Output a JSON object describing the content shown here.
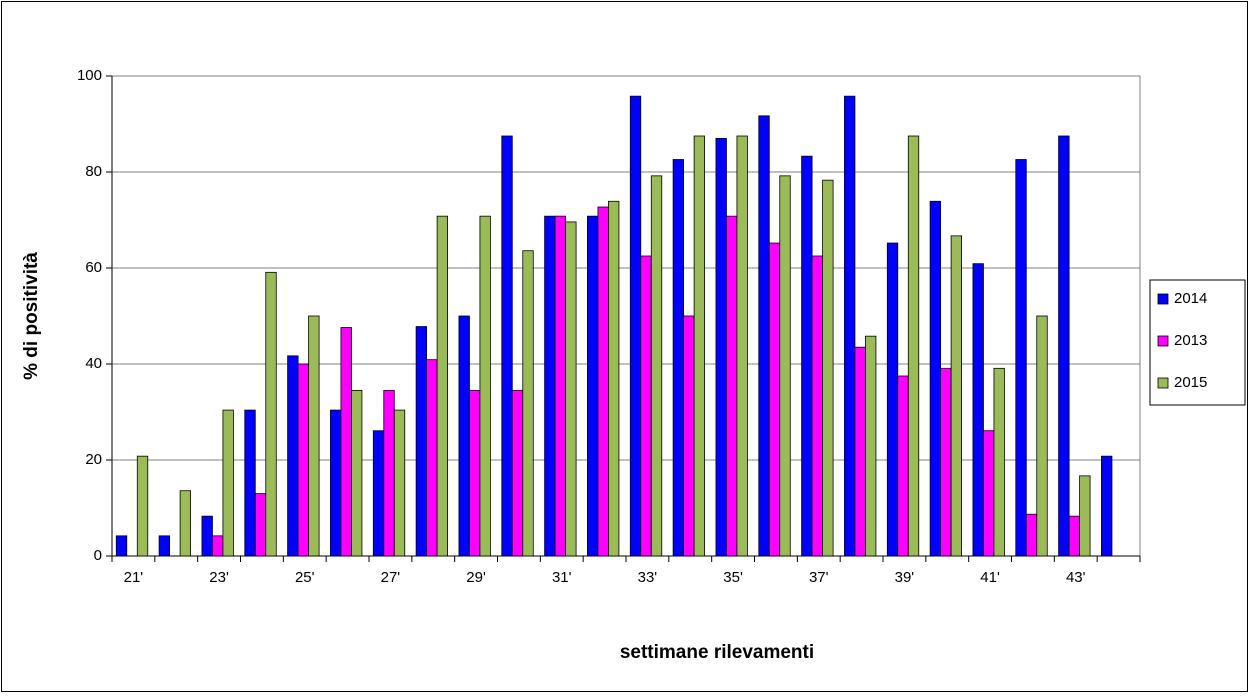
{
  "chart_data": {
    "type": "bar",
    "y_label": "% di positività",
    "x_label": "settimane rilevamenti",
    "categories": [
      "21'",
      null,
      "23'",
      null,
      "25'",
      null,
      "27'",
      null,
      "29'",
      null,
      "31'",
      null,
      "33'",
      null,
      "35'",
      null,
      "37'",
      null,
      "39'",
      null,
      "41'",
      null,
      "43'",
      null
    ],
    "series": [
      {
        "name": "2014",
        "color": "#0000ff",
        "values": [
          4.2,
          4.2,
          8.3,
          30.4,
          41.7,
          30.4,
          26.1,
          47.8,
          50,
          87.5,
          70.8,
          70.8,
          95.8,
          82.6,
          87,
          91.7,
          83.3,
          95.8,
          65.2,
          73.9,
          60.9,
          82.6,
          87.5,
          20.8
        ]
      },
      {
        "name": "2013",
        "color": "#ff00ff",
        "values": [
          null,
          null,
          4.2,
          13,
          40,
          47.6,
          34.5,
          40.9,
          34.5,
          34.5,
          70.8,
          72.7,
          62.5,
          50,
          70.8,
          65.2,
          62.5,
          43.5,
          37.5,
          39.1,
          26.1,
          8.7,
          8.3,
          null
        ]
      },
      {
        "name": "2015",
        "color": "#9bbb59",
        "values": [
          20.8,
          13.6,
          30.4,
          59.1,
          50,
          34.5,
          30.4,
          70.8,
          70.8,
          63.6,
          69.6,
          73.9,
          79.2,
          87.5,
          87.5,
          79.2,
          78.3,
          45.8,
          87.5,
          66.7,
          39.1,
          50,
          16.7,
          null
        ]
      }
    ],
    "ylim": [
      0,
      100
    ],
    "yticks": [
      0,
      20,
      40,
      60,
      80,
      100
    ],
    "grid": true,
    "legend": "right"
  }
}
